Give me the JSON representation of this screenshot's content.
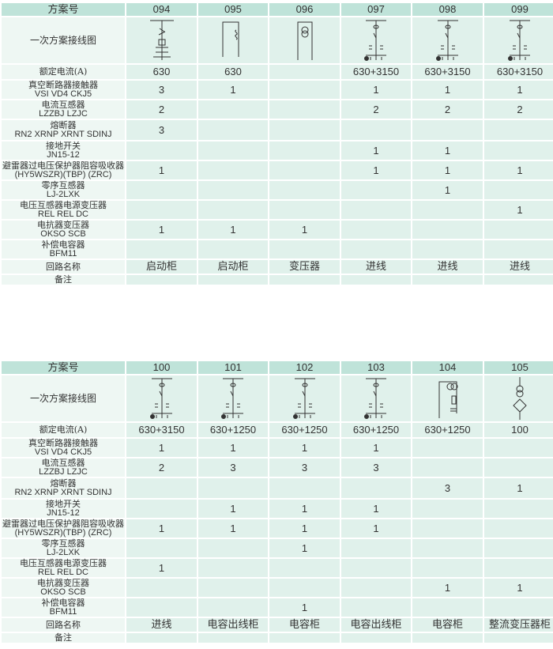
{
  "row_labels": {
    "scheme": "方案号",
    "diagram": "一次方案接线图",
    "current": "额定电流(A)",
    "items": [
      [
        "真空断路器接触器",
        "VSI VD4 CKJ5"
      ],
      [
        "电流互感器",
        "LZZBJ LZJC"
      ],
      [
        "熔断器",
        "RN2 XRNP XRNT SDINJ"
      ],
      [
        "接地开关",
        "JN15-12"
      ],
      [
        "避雷器过电压保护器阻容吸收器",
        "(HY5WSZR)(TBP) (ZRC)"
      ],
      [
        "零序互感器",
        "LJ-2LXK"
      ],
      [
        "电压互感器电源变压器",
        "REL REL DC"
      ],
      [
        "电抗器变压器",
        "OKSO SCB"
      ],
      [
        "补偿电容器",
        "BFM11"
      ]
    ],
    "name": "回路名称",
    "remark": "备注"
  },
  "tables": [
    {
      "columns": [
        {
          "id": "094",
          "current": "630",
          "items": [
            "3",
            "2",
            "3",
            "",
            "1",
            "",
            "",
            "1",
            ""
          ],
          "name": "启动柜",
          "diagram": "starter"
        },
        {
          "id": "095",
          "current": "630",
          "items": [
            "1",
            "",
            "",
            "",
            "",
            "",
            "",
            "1",
            ""
          ],
          "name": "启动柜",
          "diagram": "loop"
        },
        {
          "id": "096",
          "current": "",
          "items": [
            "",
            "",
            "",
            "",
            "",
            "",
            "",
            "1",
            ""
          ],
          "name": "变压器",
          "diagram": "transformer"
        },
        {
          "id": "097",
          "current": "630+3150",
          "items": [
            "1",
            "2",
            "",
            "1",
            "1",
            "",
            "",
            "",
            ""
          ],
          "name": "进线",
          "diagram": "incoming"
        },
        {
          "id": "098",
          "current": "630+3150",
          "items": [
            "1",
            "2",
            "",
            "1",
            "1",
            "1",
            "",
            "",
            ""
          ],
          "name": "进线",
          "diagram": "incoming"
        },
        {
          "id": "099",
          "current": "630+3150",
          "items": [
            "1",
            "2",
            "",
            "",
            "1",
            "",
            "1",
            "",
            ""
          ],
          "name": "进线",
          "diagram": "incoming"
        }
      ]
    },
    {
      "columns": [
        {
          "id": "100",
          "current": "630+3150",
          "items": [
            "1",
            "2",
            "",
            "",
            "1",
            "",
            "1",
            "",
            ""
          ],
          "name": "进线",
          "diagram": "incoming"
        },
        {
          "id": "101",
          "current": "630+1250",
          "items": [
            "1",
            "3",
            "",
            "1",
            "1",
            "",
            "",
            "",
            ""
          ],
          "name": "电容出线柜",
          "diagram": "incoming"
        },
        {
          "id": "102",
          "current": "630+1250",
          "items": [
            "1",
            "3",
            "",
            "1",
            "1",
            "1",
            "",
            "",
            "1"
          ],
          "name": "电容柜",
          "diagram": "incoming"
        },
        {
          "id": "103",
          "current": "630+1250",
          "items": [
            "1",
            "3",
            "",
            "1",
            "1",
            "",
            "",
            "",
            ""
          ],
          "name": "电容出线柜",
          "diagram": "incoming"
        },
        {
          "id": "104",
          "current": "630+1250",
          "items": [
            "",
            "",
            "3",
            "",
            "",
            "",
            "",
            "1",
            ""
          ],
          "name": "电容柜",
          "diagram": "capacitor"
        },
        {
          "id": "105",
          "current": "100",
          "items": [
            "",
            "",
            "1",
            "",
            "",
            "",
            "",
            "1",
            ""
          ],
          "name": "整流变压器柜",
          "diagram": "rectifier"
        }
      ]
    }
  ],
  "colors": {
    "header": "#bfe3d9",
    "cell": "#e0f1eb",
    "grid": "#ffffff"
  }
}
